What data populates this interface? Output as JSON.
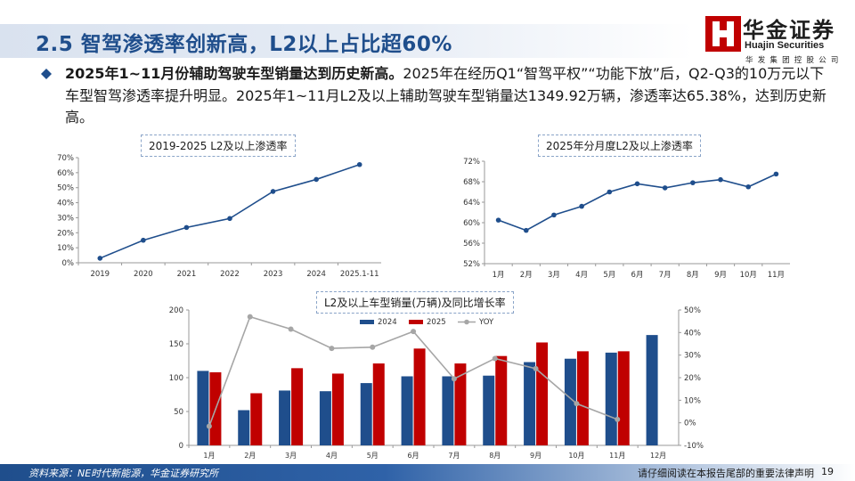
{
  "header": {
    "title": "2.5 智驾渗透率创新高，L2以上占比超60%",
    "logo": {
      "name": "华金证券",
      "name_en": "Huajin Securities",
      "subtitle": "华发集团控股公司"
    }
  },
  "bullet": {
    "lead": "2025年1~11月份辅助驾驶车型销量达到历史新高。",
    "body": "2025年在经历Q1“智驾平权”“功能下放”后，Q2-Q3的10万元以下车型智驾渗透率提升明显。2025年1~11月L2及以上辅助驾驶车型销量达1349.92万辆，渗透率达65.38%，达到历史新高。"
  },
  "colors": {
    "line": "#1f4e8c",
    "bar_2024": "#1f4e8c",
    "bar_2025": "#c00000",
    "yoy": "#a6a6a6",
    "brand": "#c00000"
  },
  "chart_data": [
    {
      "type": "line",
      "title": "2019-2025 L2及以上渗透率",
      "categories": [
        "2019",
        "2020",
        "2021",
        "2022",
        "2023",
        "2024",
        "2025.1-11"
      ],
      "values": [
        3.0,
        15.0,
        23.5,
        29.5,
        47.5,
        55.5,
        65.4
      ],
      "ylim": [
        0,
        70
      ],
      "yticks": [
        "0%",
        "10%",
        "20%",
        "30%",
        "40%",
        "50%",
        "60%",
        "70%"
      ]
    },
    {
      "type": "line",
      "title": "2025年分月度L2及以上渗透率",
      "categories": [
        "1月",
        "2月",
        "3月",
        "4月",
        "5月",
        "6月",
        "7月",
        "8月",
        "9月",
        "10月",
        "11月"
      ],
      "values": [
        60.5,
        58.5,
        61.5,
        63.2,
        66.0,
        67.6,
        66.8,
        67.8,
        68.4,
        67.0,
        69.5
      ],
      "ylim": [
        52,
        72
      ],
      "yticks": [
        "52%",
        "56%",
        "60%",
        "64%",
        "68%",
        "72%"
      ]
    },
    {
      "type": "bar",
      "title": "L2及以上车型销量(万辆)及同比增长率",
      "categories": [
        "1月",
        "2月",
        "3月",
        "4月",
        "5月",
        "6月",
        "7月",
        "8月",
        "9月",
        "10月",
        "11月",
        "12月"
      ],
      "series": [
        {
          "name": "2024",
          "values": [
            110,
            52,
            81,
            80,
            92,
            102,
            102,
            103,
            123,
            128,
            137,
            163
          ]
        },
        {
          "name": "2025",
          "values": [
            108,
            77,
            114,
            106,
            121,
            143,
            121,
            132,
            152,
            139,
            139,
            null
          ]
        },
        {
          "name": "YOY",
          "axis": "right",
          "values": [
            -1.5,
            47.0,
            41.5,
            33.0,
            33.5,
            40.5,
            19.5,
            28.5,
            24.0,
            8.5,
            1.5,
            null
          ]
        }
      ],
      "ylim_left": [
        0,
        200
      ],
      "yticks_left": [
        "0",
        "50",
        "100",
        "150",
        "200"
      ],
      "ylim_right": [
        -10,
        50
      ],
      "yticks_right": [
        "-10%",
        "0%",
        "10%",
        "20%",
        "30%",
        "40%",
        "50%"
      ]
    }
  ],
  "footer": {
    "source": "资料来源：NE时代新能源，华金证券研究所",
    "disclaimer": "请仔细阅读在本报告尾部的重要法律声明",
    "page": "19"
  }
}
